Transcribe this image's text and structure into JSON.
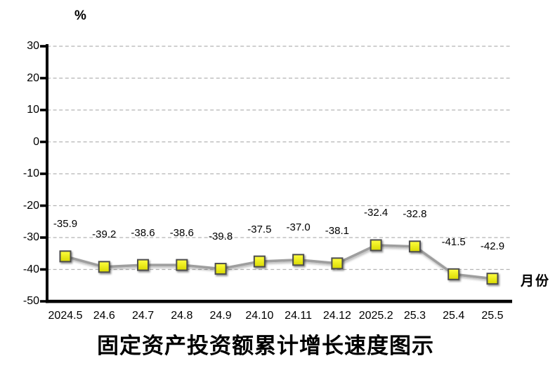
{
  "chart_data": {
    "type": "line",
    "title": "固定资产投资额累计增长速度图示",
    "xlabel": "月份",
    "ylabel": "%",
    "categories": [
      "2024.5",
      "24.6",
      "24.7",
      "24.8",
      "24.9",
      "24.10",
      "24.11",
      "24.12",
      "2025.2",
      "25.3",
      "25.4",
      "25.5"
    ],
    "values": [
      -35.9,
      -39.2,
      -38.6,
      -38.6,
      -39.8,
      -37.5,
      -37.0,
      -38.1,
      -32.4,
      -32.8,
      -41.5,
      -42.9
    ],
    "data_labels": [
      "-35.9",
      "-39.2",
      "-38.6",
      "-38.6",
      "-39.8",
      "-37.5",
      "-37.0",
      "-38.1",
      "-32.4",
      "-32.8",
      "-41.5",
      "-42.9"
    ],
    "yticks": [
      30,
      20,
      10,
      0,
      -10,
      -20,
      -30,
      -40,
      -50
    ],
    "ylim": [
      -50,
      30
    ],
    "grid": true,
    "legend": false,
    "colors": {
      "marker_fill_top": "#ffff40",
      "marker_fill_bottom": "#d9d900",
      "marker_border": "#4d4d4d",
      "line": "#9e9e9e",
      "gridline": "#b3b3b3",
      "axis": "#000000",
      "text": "#000000"
    }
  }
}
